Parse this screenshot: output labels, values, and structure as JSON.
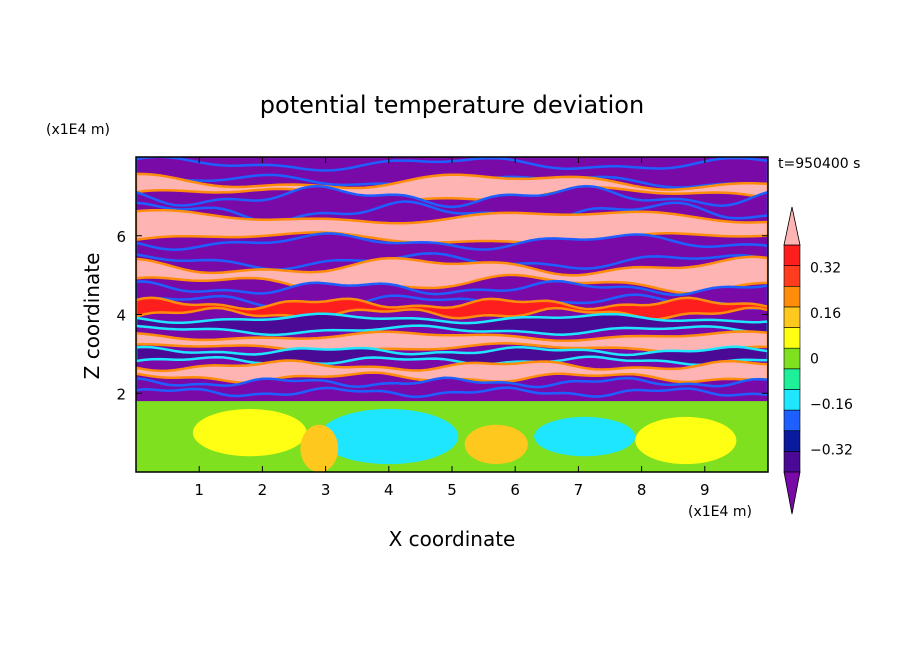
{
  "chart_data": {
    "type": "heatmap",
    "title": "potential temperature deviation",
    "xlabel": "X coordinate",
    "ylabel": "Z coordinate",
    "x_unit": "(x1E4 m)",
    "y_unit": "(x1E4 m)",
    "time_label": "t=950400 s",
    "xlim": [
      0,
      10
    ],
    "ylim": [
      0,
      8
    ],
    "x_ticks": [
      "1",
      "2",
      "3",
      "4",
      "5",
      "6",
      "7",
      "8",
      "9"
    ],
    "y_ticks": [
      "2",
      "4",
      "6"
    ],
    "colorbar": {
      "levels": [
        -0.48,
        -0.4,
        -0.32,
        -0.24,
        -0.16,
        -0.08,
        0,
        0.08,
        0.16,
        0.24,
        0.32,
        0.4,
        0.48
      ],
      "tick_labels": [
        "0.32",
        "0.16",
        "0",
        "−0.16",
        "−0.32"
      ],
      "tick_values": [
        0.32,
        0.16,
        0,
        -0.16,
        -0.32
      ],
      "colors": [
        "#7a0aa8",
        "#4b0a96",
        "#0a1a9e",
        "#1e60ff",
        "#1ee6ff",
        "#1ef09a",
        "#7ee01e",
        "#ffff14",
        "#ffc81e",
        "#ff8c0a",
        "#ff3c1e",
        "#ff1e1e",
        "#ffb4b4"
      ],
      "under_color": "#7a0aa8",
      "over_color": "#ffb4b4"
    },
    "bands": [
      {
        "z": 7.6,
        "thickness": 0.45,
        "value": -0.48,
        "amp": 0.12,
        "freq": 1.3,
        "phase": 0.2
      },
      {
        "z": 7.2,
        "thickness": 0.35,
        "value": 0.48,
        "amp": 0.15,
        "freq": 1.0,
        "phase": 1.1
      },
      {
        "z": 6.8,
        "thickness": 0.4,
        "value": -0.48,
        "amp": 0.18,
        "freq": 1.6,
        "phase": 2.0
      },
      {
        "z": 6.2,
        "thickness": 0.55,
        "value": 0.48,
        "amp": 0.12,
        "freq": 0.9,
        "phase": 0.5
      },
      {
        "z": 5.6,
        "thickness": 0.5,
        "value": -0.48,
        "amp": 0.14,
        "freq": 1.4,
        "phase": 2.6
      },
      {
        "z": 5.0,
        "thickness": 0.45,
        "value": 0.48,
        "amp": 0.16,
        "freq": 1.2,
        "phase": 1.4
      },
      {
        "z": 4.5,
        "thickness": 0.35,
        "value": -0.48,
        "amp": 0.12,
        "freq": 1.8,
        "phase": 0.9
      },
      {
        "z": 4.15,
        "thickness": 0.25,
        "value": 0.4,
        "amp": 0.1,
        "freq": 2.2,
        "phase": 0.1
      },
      {
        "z": 3.75,
        "thickness": 0.3,
        "value": -0.4,
        "amp": 0.08,
        "freq": 1.5,
        "phase": 2.3
      },
      {
        "z": 3.3,
        "thickness": 0.3,
        "value": 0.48,
        "amp": 0.08,
        "freq": 1.2,
        "phase": 1.7
      },
      {
        "z": 2.95,
        "thickness": 0.25,
        "value": -0.4,
        "amp": 0.07,
        "freq": 2.0,
        "phase": 0.6
      },
      {
        "z": 2.55,
        "thickness": 0.3,
        "value": 0.48,
        "amp": 0.09,
        "freq": 1.7,
        "phase": 2.9
      },
      {
        "z": 2.15,
        "thickness": 0.25,
        "value": -0.48,
        "amp": 0.08,
        "freq": 2.4,
        "phase": 1.2
      }
    ],
    "lower_layer": {
      "top_z": 1.8,
      "blobs": [
        {
          "x": 4.0,
          "z": 0.9,
          "rx": 1.1,
          "rz": 0.7,
          "value": -0.16
        },
        {
          "x": 7.1,
          "z": 0.9,
          "rx": 0.8,
          "rz": 0.5,
          "value": -0.16
        },
        {
          "x": 1.8,
          "z": 1.0,
          "rx": 0.9,
          "rz": 0.6,
          "value": 0.08
        },
        {
          "x": 5.7,
          "z": 0.7,
          "rx": 0.5,
          "rz": 0.5,
          "value": 0.16
        },
        {
          "x": 8.7,
          "z": 0.8,
          "rx": 0.8,
          "rz": 0.6,
          "value": 0.08
        },
        {
          "x": 2.9,
          "z": 0.6,
          "rx": 0.3,
          "rz": 0.6,
          "value": 0.16
        }
      ]
    }
  }
}
